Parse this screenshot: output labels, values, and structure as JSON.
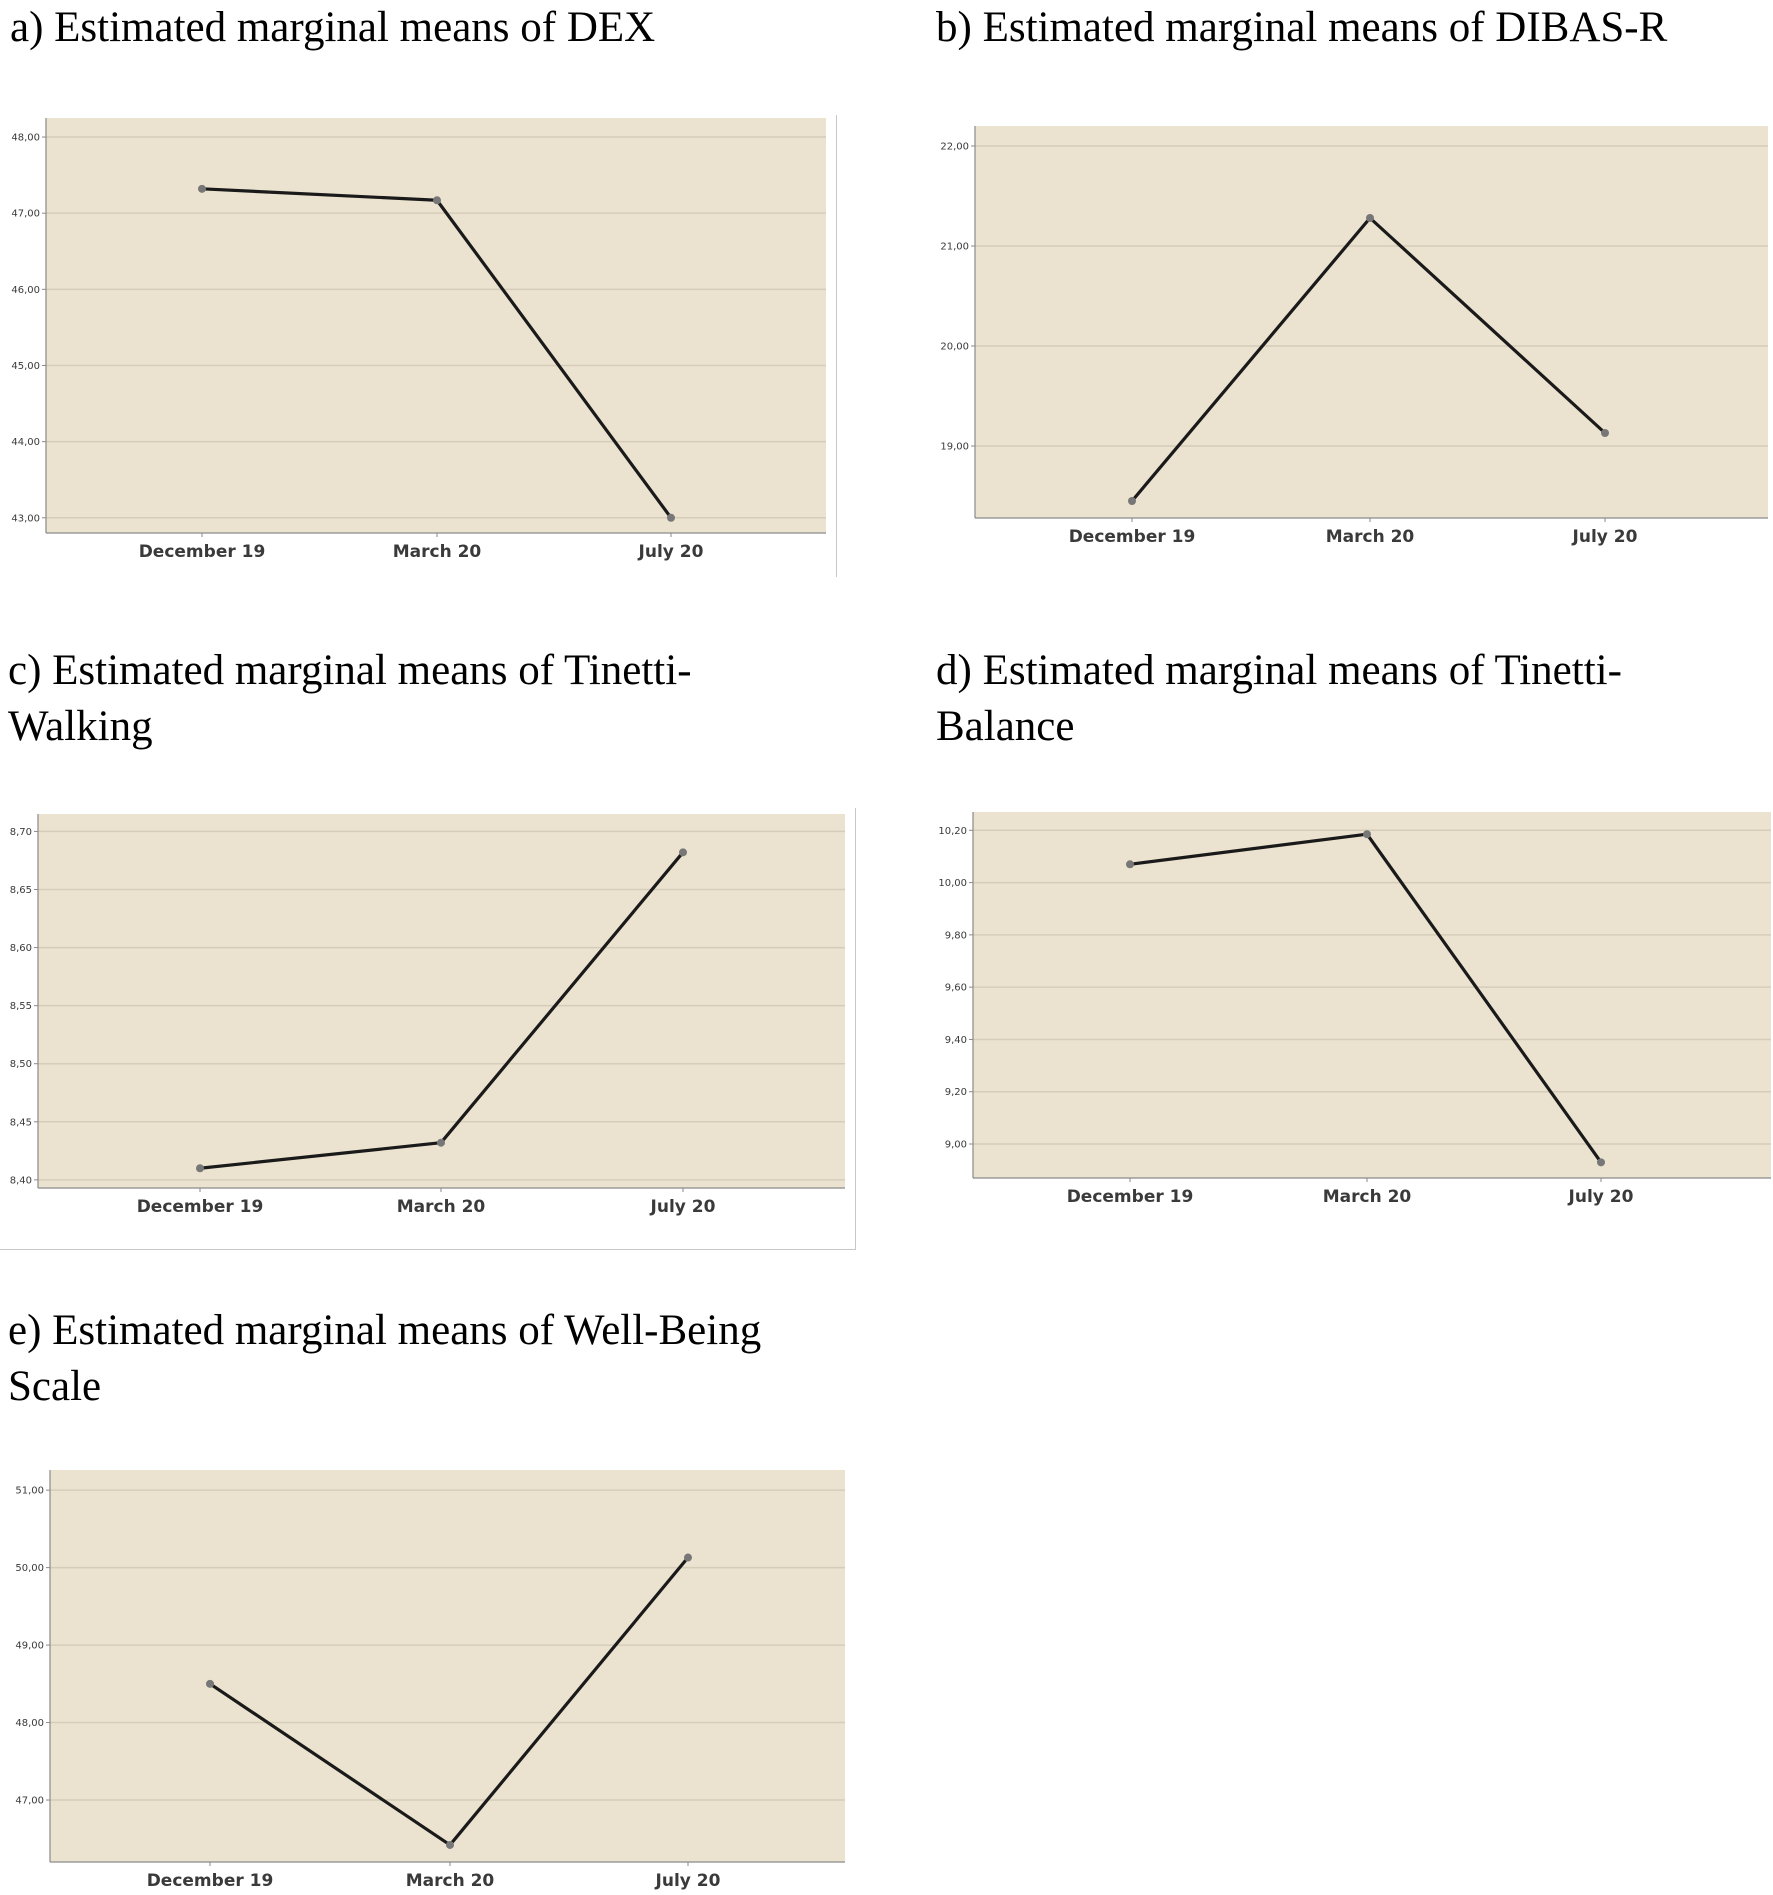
{
  "figure": {
    "x_categories": [
      "December 19",
      "March 20",
      "July 20"
    ],
    "colors": {
      "plot_background": "#ebe3cf",
      "gridline": "#d5cdba",
      "axis": "#8a8a8a",
      "series_line": "#1a1a1a",
      "marker": "#777777"
    }
  },
  "chart_data": [
    {
      "type": "line",
      "panel_label": "a)",
      "title": "Estimated marginal means of DEX",
      "categories": [
        "December 19",
        "March 20",
        "July 20"
      ],
      "values": [
        47.32,
        47.17,
        43.0
      ],
      "yticks": [
        "43,00",
        "44,00",
        "45,00",
        "46,00",
        "47,00",
        "48,00"
      ],
      "ylim": [
        42.8,
        48.25
      ],
      "grid": true
    },
    {
      "type": "line",
      "panel_label": "b)",
      "title": "Estimated marginal means of DIBAS-R",
      "categories": [
        "December 19",
        "March 20",
        "July 20"
      ],
      "values": [
        18.45,
        21.28,
        19.13
      ],
      "yticks": [
        "19,00",
        "20,00",
        "21,00",
        "22,00"
      ],
      "ylim": [
        18.28,
        22.2
      ],
      "grid": true
    },
    {
      "type": "line",
      "panel_label": "c)",
      "title": "Estimated marginal means of Tinetti-Walking",
      "categories": [
        "December 19",
        "March 20",
        "July 20"
      ],
      "values": [
        8.41,
        8.432,
        8.682
      ],
      "yticks": [
        "8,40",
        "8,45",
        "8,50",
        "8,55",
        "8,60",
        "8,65",
        "8,70"
      ],
      "ylim": [
        8.393,
        8.715
      ],
      "grid": true
    },
    {
      "type": "line",
      "panel_label": "d)",
      "title": "Estimated marginal means of Tinetti-Balance",
      "categories": [
        "December 19",
        "March 20",
        "July 20"
      ],
      "values": [
        10.07,
        10.185,
        8.93
      ],
      "yticks": [
        "9,00",
        "9,20",
        "9,40",
        "9,60",
        "9,80",
        "10,00",
        "10,20"
      ],
      "ylim": [
        8.87,
        10.27
      ],
      "grid": true
    },
    {
      "type": "line",
      "panel_label": "e)",
      "title": "Estimated marginal means of Well-Being Scale",
      "categories": [
        "December 19",
        "March 20",
        "July 20"
      ],
      "values": [
        48.5,
        46.42,
        50.13
      ],
      "yticks": [
        "47,00",
        "48,00",
        "49,00",
        "50,00",
        "51,00"
      ],
      "ylim": [
        46.2,
        51.26
      ],
      "grid": true
    }
  ]
}
